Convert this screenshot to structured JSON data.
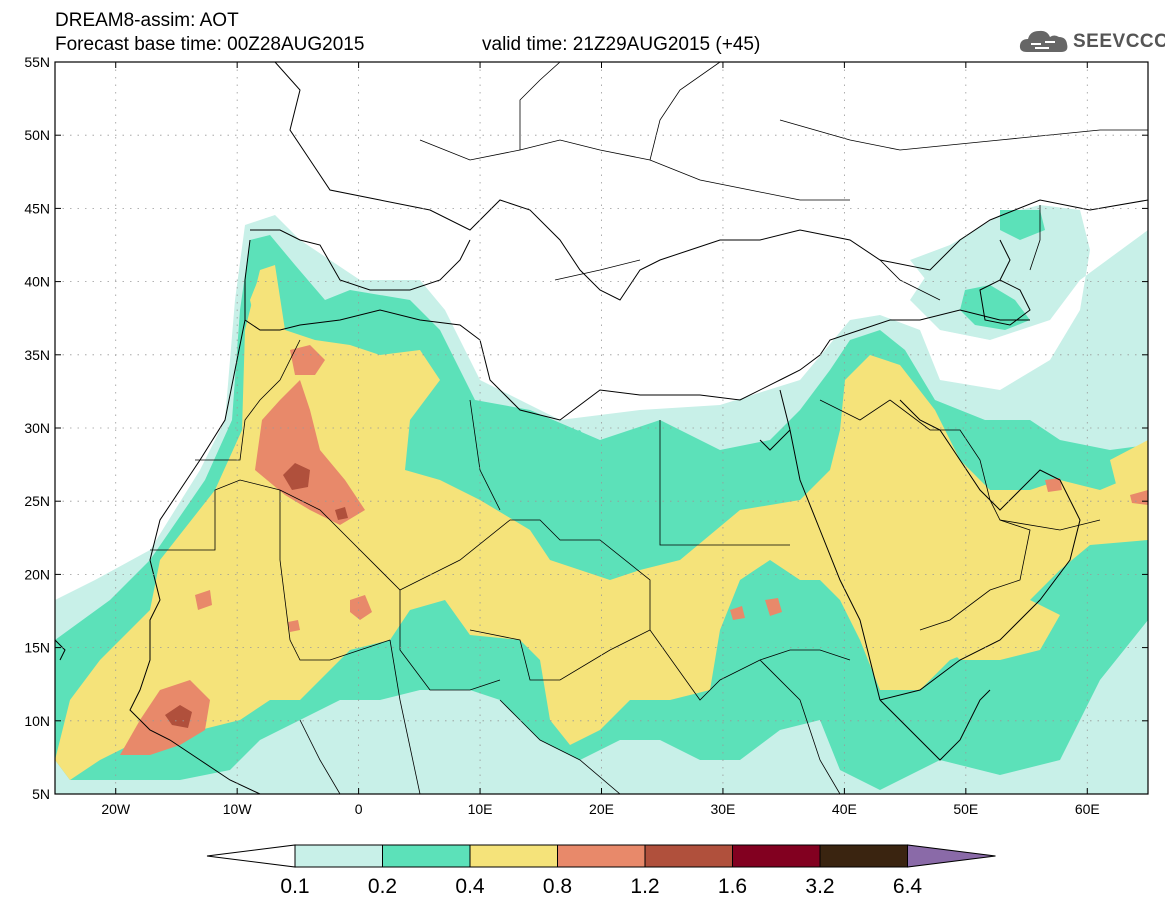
{
  "header": {
    "title_line1": "DREAM8-assim: AOT",
    "title_line2": "Forecast base time: 00Z28AUG2015",
    "valid_time": "valid time: 21Z29AUG2015 (+45)"
  },
  "logo": {
    "text": "SEEVCCC",
    "icon": "cloud-icon"
  },
  "map": {
    "lat_labels": [
      "55N",
      "50N",
      "45N",
      "40N",
      "35N",
      "30N",
      "25N",
      "20N",
      "15N",
      "10N",
      "5N"
    ],
    "lon_labels": [
      "20W",
      "10W",
      "0",
      "10E",
      "20E",
      "30E",
      "40E",
      "50E",
      "60E"
    ],
    "lon_range": [
      -25,
      65
    ],
    "lat_range": [
      5,
      55
    ]
  },
  "legend": {
    "levels": [
      "0.1",
      "0.2",
      "0.4",
      "0.8",
      "1.2",
      "1.6",
      "3.2",
      "6.4"
    ],
    "colors": [
      "#ffffff",
      "#c8f0e8",
      "#5ce1b9",
      "#f5e37a",
      "#e8896a",
      "#b0503c",
      "#820020",
      "#3a2410",
      "#8a6aa8"
    ]
  }
}
